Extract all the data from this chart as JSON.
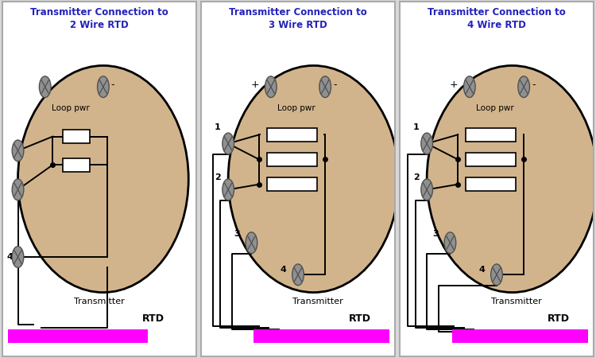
{
  "bg_color": "#d8d8d8",
  "panel_bg": "#ffffff",
  "circle_color": "#D2B48C",
  "circle_edge": "#000000",
  "screw_color": "#909090",
  "screw_edge": "#505050",
  "rtd_bar_color": "#FF00FF",
  "title_color": "#2222BB",
  "wire_color": "#000000",
  "panel_titles": [
    "Transmitter Connection to\n2 Wire RTD",
    "Transmitter Connection to\n3 Wire RTD",
    "Transmitter Connection to\n4 Wire RTD"
  ]
}
